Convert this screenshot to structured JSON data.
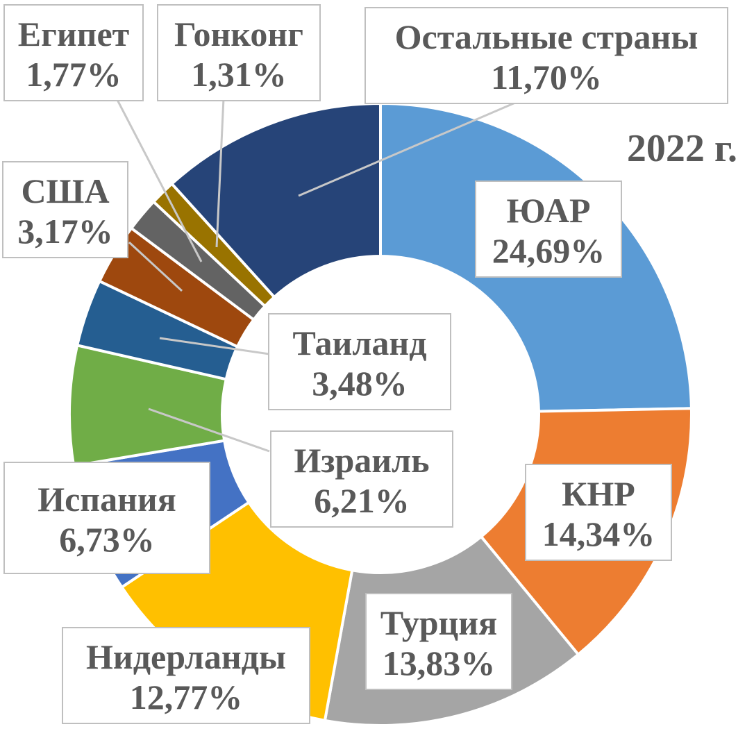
{
  "chart_data": {
    "type": "pie",
    "title": "2022 г.",
    "hole": true,
    "slices": [
      {
        "name": "ЮАР",
        "value": 24.69,
        "value_label": "24,69%",
        "color": "#5B9BD5"
      },
      {
        "name": "КНР",
        "value": 14.34,
        "value_label": "14,34%",
        "color": "#ED7D31"
      },
      {
        "name": "Турция",
        "value": 13.83,
        "value_label": "13,83%",
        "color": "#A5A5A5"
      },
      {
        "name": "Нидерланды",
        "value": 12.77,
        "value_label": "12,77%",
        "color": "#FFC000"
      },
      {
        "name": "Испания",
        "value": 6.73,
        "value_label": "6,73%",
        "color": "#4472C4"
      },
      {
        "name": "Израиль",
        "value": 6.21,
        "value_label": "6,21%",
        "color": "#70AD47"
      },
      {
        "name": "Таиланд",
        "value": 3.48,
        "value_label": "3,48%",
        "color": "#255E91"
      },
      {
        "name": "США",
        "value": 3.17,
        "value_label": "3,17%",
        "color": "#9E480E"
      },
      {
        "name": "Египет",
        "value": 1.77,
        "value_label": "1,77%",
        "color": "#636363"
      },
      {
        "name": "Гонконг",
        "value": 1.31,
        "value_label": "1,31%",
        "color": "#997300"
      },
      {
        "name": "Остальные страны",
        "value": 11.7,
        "value_label": "11,70%",
        "color": "#264478"
      }
    ]
  }
}
